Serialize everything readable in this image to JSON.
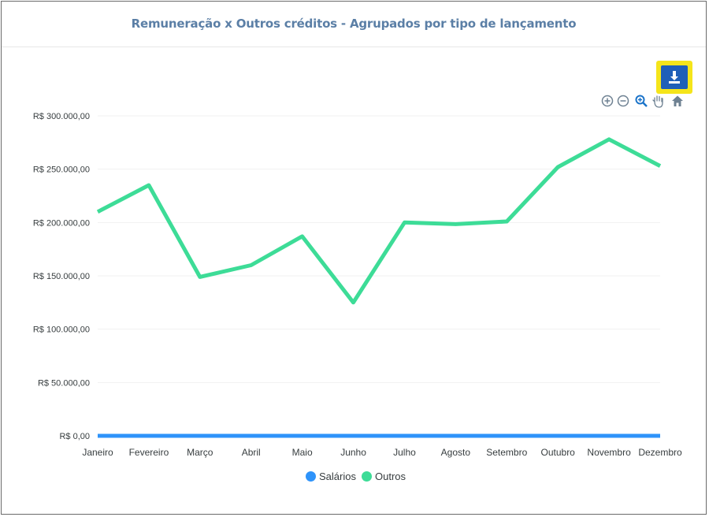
{
  "header": {
    "title": "Remuneração x Outros créditos - Agrupados por tipo de lançamento"
  },
  "toolbar": {
    "download": "download-icon",
    "tools": [
      "zoom-in-icon",
      "zoom-out-icon",
      "zoom-selection-icon",
      "pan-hand-icon",
      "reset-home-icon"
    ]
  },
  "chart_data": {
    "type": "line",
    "title": "Remuneração x Outros créditos - Agrupados por tipo de lançamento",
    "categories": [
      "Janeiro",
      "Fevereiro",
      "Março",
      "Abril",
      "Maio",
      "Junho",
      "Julho",
      "Agosto",
      "Setembro",
      "Outubro",
      "Novembro",
      "Dezembro"
    ],
    "series": [
      {
        "name": "Salários",
        "color": "#2e93fa",
        "values": [
          0,
          0,
          0,
          0,
          0,
          0,
          0,
          0,
          0,
          0,
          0,
          0
        ]
      },
      {
        "name": "Outros",
        "color": "#3ddc97",
        "values": [
          210000,
          235000,
          149000,
          160000,
          187000,
          125000,
          200000,
          198500,
          201000,
          252000,
          278000,
          253000
        ]
      }
    ],
    "ylim": [
      0,
      300000
    ],
    "yticks": [
      0,
      50000,
      100000,
      150000,
      200000,
      250000,
      300000
    ],
    "ytick_labels": [
      "R$ 0,00",
      "R$ 50.000,00",
      "R$ 100.000,00",
      "R$ 150.000,00",
      "R$ 200.000,00",
      "R$ 250.000,00",
      "R$ 300.000,00"
    ],
    "grid": true,
    "legend": "bottom-center"
  }
}
